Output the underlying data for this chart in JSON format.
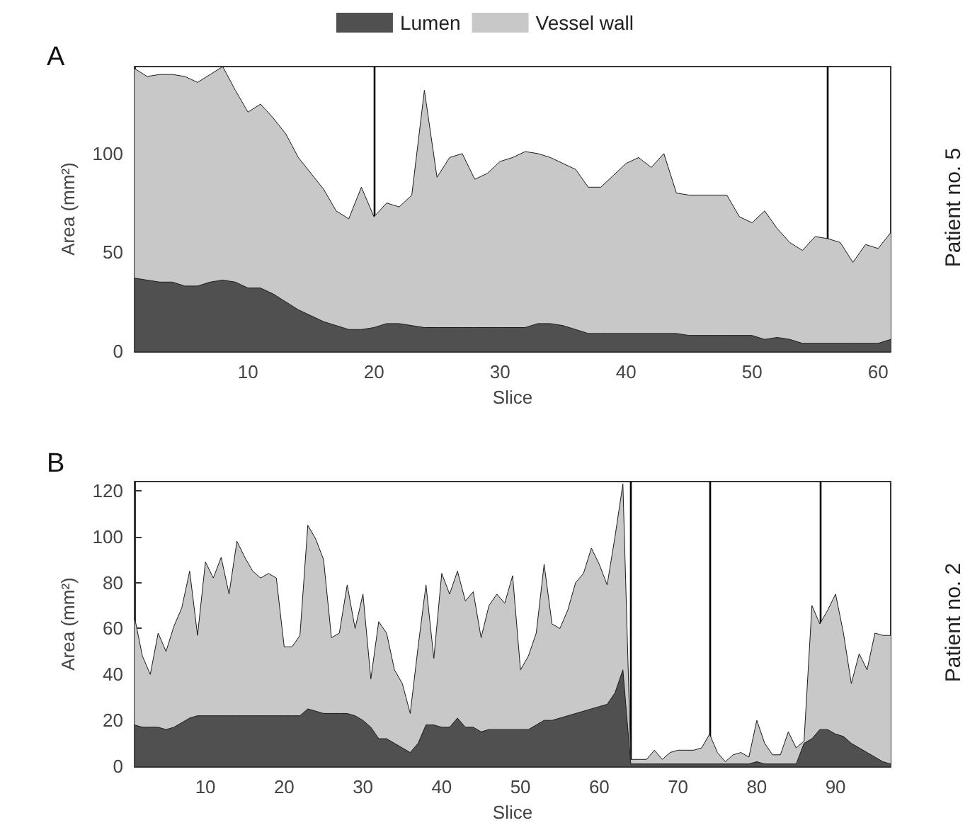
{
  "chart_data": [
    {
      "type": "area",
      "title": "A",
      "xlabel": "Slice",
      "ylabel": "Area (mm²)",
      "y2label": "Patient no. 5",
      "stacked": true,
      "legend": "top",
      "grid": false,
      "x": [
        1,
        2,
        3,
        4,
        5,
        6,
        7,
        8,
        9,
        10,
        11,
        12,
        13,
        14,
        15,
        16,
        17,
        18,
        19,
        20,
        21,
        22,
        23,
        24,
        25,
        26,
        27,
        28,
        29,
        30,
        31,
        32,
        33,
        34,
        35,
        36,
        37,
        38,
        39,
        40,
        41,
        42,
        43,
        44,
        45,
        46,
        47,
        48,
        49,
        50,
        51,
        52,
        53,
        54,
        55,
        56,
        57,
        58,
        59,
        60,
        61
      ],
      "series": [
        {
          "name": "Lumen",
          "color": "#505050",
          "values": [
            37,
            36,
            35,
            35,
            33,
            33,
            35,
            36,
            35,
            32,
            32,
            29,
            25,
            21,
            18,
            15,
            13,
            11,
            11,
            12,
            14,
            14,
            13,
            12,
            12,
            12,
            12,
            12,
            12,
            12,
            12,
            12,
            14,
            14,
            13,
            11,
            9,
            9,
            9,
            9,
            9,
            9,
            9,
            9,
            8,
            8,
            8,
            8,
            8,
            8,
            6,
            7,
            6,
            4,
            4,
            4,
            4,
            4,
            4,
            4,
            6
          ]
        },
        {
          "name": "Vessel wall",
          "color": "#c8c8c8",
          "values": [
            106,
            103,
            105,
            105,
            106,
            103,
            105,
            108,
            97,
            89,
            93,
            89,
            85,
            77,
            72,
            67,
            58,
            56,
            72,
            56,
            61,
            59,
            66,
            120,
            76,
            86,
            88,
            75,
            78,
            84,
            86,
            89,
            86,
            84,
            82,
            81,
            74,
            74,
            80,
            86,
            89,
            84,
            91,
            71,
            71,
            71,
            71,
            71,
            60,
            57,
            65,
            55,
            49,
            47,
            54,
            53,
            51,
            41,
            50,
            48,
            54
          ]
        }
      ],
      "xlim": [
        1,
        61
      ],
      "ylim": [
        0,
        144
      ],
      "xticks": [
        10,
        20,
        30,
        40,
        50,
        60
      ],
      "yticks": [
        0,
        50,
        100
      ],
      "ref_lines": [
        {
          "axis": "x",
          "value": 20
        },
        {
          "axis": "x",
          "value": 56
        }
      ]
    },
    {
      "type": "area",
      "title": "B",
      "xlabel": "Slice",
      "ylabel": "Area (mm²)",
      "y2label": "Patient no. 2",
      "stacked": true,
      "grid": false,
      "x": [
        1,
        2,
        3,
        4,
        5,
        6,
        7,
        8,
        9,
        10,
        11,
        12,
        13,
        14,
        15,
        16,
        17,
        18,
        19,
        20,
        21,
        22,
        23,
        24,
        25,
        26,
        27,
        28,
        29,
        30,
        31,
        32,
        33,
        34,
        35,
        36,
        37,
        38,
        39,
        40,
        41,
        42,
        43,
        44,
        45,
        46,
        47,
        48,
        49,
        50,
        51,
        52,
        53,
        54,
        55,
        56,
        57,
        58,
        59,
        60,
        61,
        62,
        63,
        64,
        65,
        66,
        67,
        68,
        69,
        70,
        71,
        72,
        73,
        74,
        75,
        76,
        77,
        78,
        79,
        80,
        81,
        82,
        83,
        84,
        85,
        86,
        87,
        88,
        89,
        90,
        91,
        92,
        93,
        94,
        95,
        96,
        97
      ],
      "series": [
        {
          "color": "#505050",
          "values": [
            18,
            17,
            17,
            17,
            16,
            17,
            19,
            21,
            22,
            22,
            22,
            22,
            22,
            22,
            22,
            22,
            22,
            22,
            22,
            22,
            22,
            22,
            25,
            24,
            23,
            23,
            23,
            23,
            22,
            20,
            17,
            12,
            12,
            10,
            8,
            6,
            10,
            18,
            18,
            17,
            17,
            21,
            17,
            17,
            15,
            16,
            16,
            16,
            16,
            16,
            16,
            18,
            20,
            20,
            21,
            22,
            23,
            24,
            25,
            26,
            27,
            32,
            42,
            1,
            1,
            1,
            1,
            1,
            1,
            1,
            1,
            1,
            1,
            1,
            1,
            1,
            1,
            1,
            1,
            2,
            1,
            1,
            1,
            1,
            1,
            10,
            12,
            16,
            16,
            14,
            13,
            10,
            8,
            6,
            4,
            2,
            1
          ]
        },
        {
          "color": "#c8c8c8",
          "values": [
            47,
            31,
            23,
            41,
            34,
            44,
            50,
            64,
            35,
            67,
            60,
            69,
            53,
            76,
            69,
            63,
            60,
            62,
            60,
            30,
            30,
            35,
            80,
            75,
            67,
            33,
            35,
            56,
            38,
            55,
            21,
            51,
            46,
            32,
            28,
            17,
            42,
            61,
            29,
            67,
            58,
            64,
            55,
            59,
            41,
            54,
            59,
            55,
            67,
            26,
            32,
            40,
            68,
            42,
            39,
            46,
            57,
            60,
            70,
            62,
            52,
            68,
            81,
            2,
            2,
            2,
            6,
            2,
            5,
            6,
            6,
            6,
            7,
            13,
            5,
            1,
            4,
            5,
            3,
            18,
            9,
            4,
            4,
            14,
            7,
            1,
            58,
            46,
            52,
            61,
            45,
            26,
            41,
            36,
            54,
            55,
            56
          ]
        }
      ],
      "xlim": [
        1,
        97
      ],
      "ylim": [
        0,
        124
      ],
      "xticks": [
        10,
        20,
        30,
        40,
        50,
        60,
        70,
        80,
        90
      ],
      "yticks": [
        0,
        20,
        40,
        60,
        80,
        100,
        120
      ],
      "ref_lines": [
        {
          "axis": "x",
          "value": 64
        },
        {
          "axis": "x",
          "value": 74
        },
        {
          "axis": "x",
          "value": 88
        }
      ]
    }
  ]
}
